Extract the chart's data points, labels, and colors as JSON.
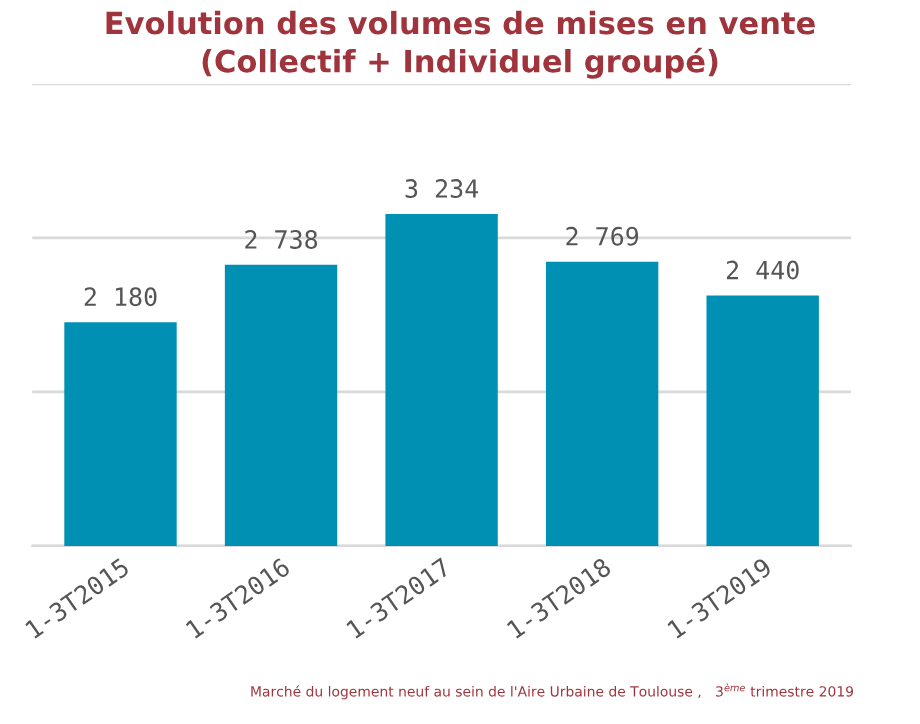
{
  "chart_data": {
    "type": "bar",
    "title": "Evolution des volumes de mises en vente\n(Collectif + Individuel groupé)",
    "categories": [
      "1-3T2015",
      "1-3T2016",
      "1-3T2017",
      "1-3T2018",
      "1-3T2019"
    ],
    "values": [
      2180,
      2738,
      3234,
      2769,
      2440
    ],
    "value_labels": [
      "2 180",
      "2 738",
      "3 234",
      "2 769",
      "2 440"
    ],
    "color": "#0090b4",
    "ylim": [
      0,
      4500
    ],
    "yticks": [
      {
        "value": 0,
        "label": null
      },
      {
        "value": 1500,
        "label": null
      },
      {
        "value": 3000,
        "label": null
      },
      {
        "value": 4500,
        "label": null
      }
    ],
    "grid": "y",
    "tick_labels": "x",
    "legend": false,
    "annotations": [
      "Marché du logement neuf au sein de l'Aire Urbaine de Toulouse ,   3$^{ème}$ trimestre 2019"
    ]
  }
}
